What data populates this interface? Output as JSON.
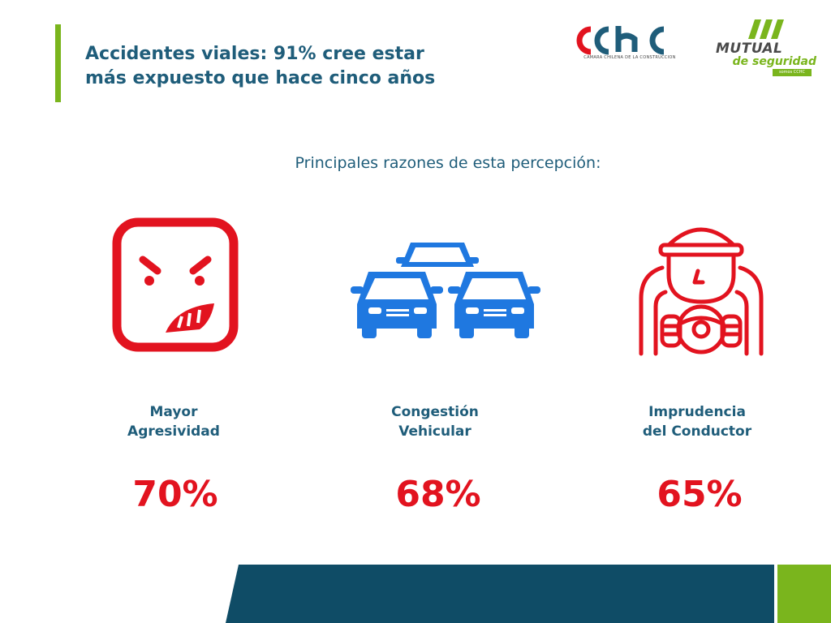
{
  "header": {
    "title_line1": "Accidentes viales: 91% cree estar",
    "title_line2": "más expuesto que hace cinco años"
  },
  "logos": {
    "cchc": {
      "wordmark": "cchc",
      "caption": "CAMARA CHILENA DE LA CONSTRUCCION"
    },
    "mutual": {
      "word": "MUTUAL",
      "sub": "de seguridad",
      "tag": "somos CCHC"
    }
  },
  "subtitle": "Principales razones de esta percepción:",
  "reasons": [
    {
      "label_line1": "Mayor",
      "label_line2": "Agresividad",
      "percent": "70%",
      "icon": "angry-face-icon"
    },
    {
      "label_line1": "Congestión",
      "label_line2": "Vehicular",
      "percent": "68%",
      "icon": "traffic-cars-icon"
    },
    {
      "label_line1": "Imprudencia",
      "label_line2": "del Conductor",
      "percent": "65%",
      "icon": "driver-icon"
    }
  ],
  "colors": {
    "title_blue": "#1f5d7a",
    "accent_green": "#7ab51d",
    "alert_red": "#e2131f",
    "car_blue": "#1f78e0",
    "footer_teal": "#0f4c66"
  }
}
